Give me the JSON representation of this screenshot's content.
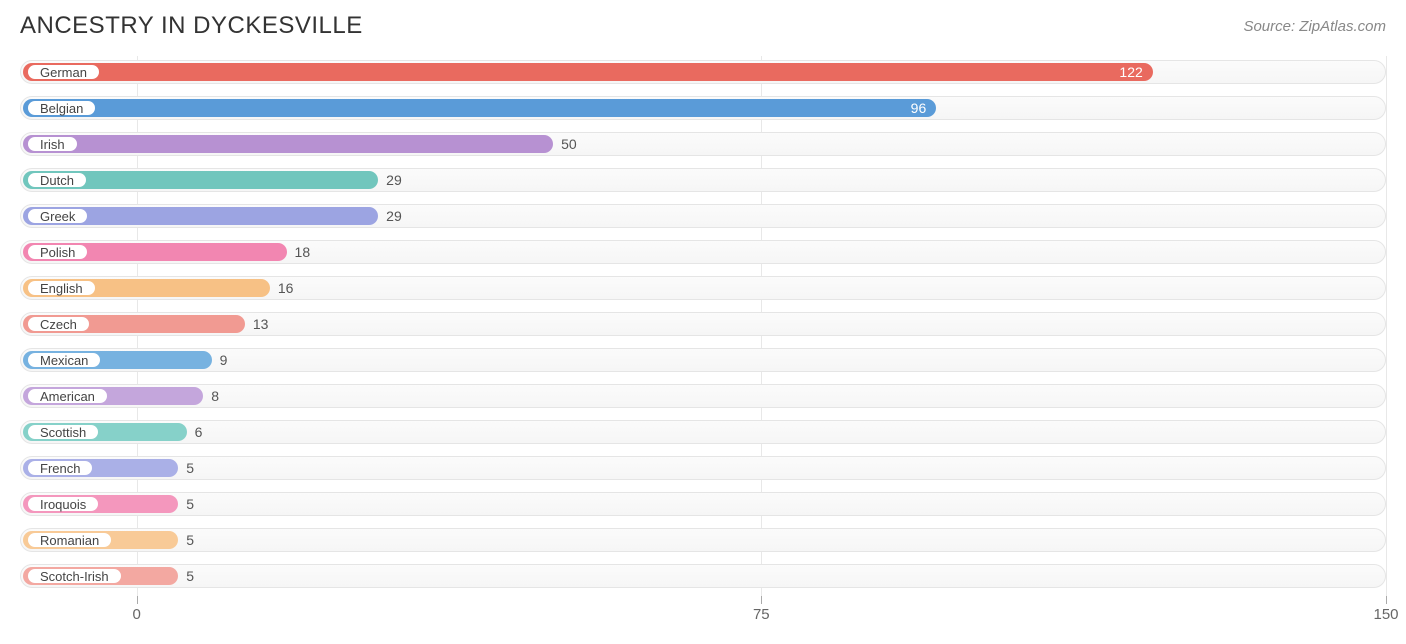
{
  "header": {
    "title": "ANCESTRY IN DYCKESVILLE",
    "source": "Source: ZipAtlas.com"
  },
  "chart": {
    "type": "bar-horizontal",
    "xlim": [
      0,
      150
    ],
    "ticks": [
      0,
      75,
      150
    ],
    "track_border_color": "#e5e5e5",
    "track_bg_top": "#fbfbfb",
    "track_bg_bottom": "#f6f6f6",
    "grid_color": "#e8e8e8",
    "tick_color": "#aaaaaa",
    "tick_label_color": "#666666",
    "title_color": "#333333",
    "title_fontsize": 24,
    "source_color": "#888888",
    "label_fontsize": 13,
    "value_fontsize": 14,
    "bar_origin_value": -14,
    "data": [
      {
        "label": "German",
        "value": 122,
        "color": "#e96a5f",
        "value_inside": true
      },
      {
        "label": "Belgian",
        "value": 96,
        "color": "#5a9bd8",
        "value_inside": true
      },
      {
        "label": "Irish",
        "value": 50,
        "color": "#b791d2",
        "value_inside": false
      },
      {
        "label": "Dutch",
        "value": 29,
        "color": "#71c6bd",
        "value_inside": false
      },
      {
        "label": "Greek",
        "value": 29,
        "color": "#9ca4e2",
        "value_inside": false
      },
      {
        "label": "Polish",
        "value": 18,
        "color": "#f286b1",
        "value_inside": false
      },
      {
        "label": "English",
        "value": 16,
        "color": "#f7c185",
        "value_inside": false
      },
      {
        "label": "Czech",
        "value": 13,
        "color": "#f19a92",
        "value_inside": false
      },
      {
        "label": "Mexican",
        "value": 9,
        "color": "#77b2e0",
        "value_inside": false
      },
      {
        "label": "American",
        "value": 8,
        "color": "#c4a6dc",
        "value_inside": false
      },
      {
        "label": "Scottish",
        "value": 6,
        "color": "#86d1c9",
        "value_inside": false
      },
      {
        "label": "French",
        "value": 5,
        "color": "#aab0e7",
        "value_inside": false
      },
      {
        "label": "Iroquois",
        "value": 5,
        "color": "#f497bd",
        "value_inside": false
      },
      {
        "label": "Romanian",
        "value": 5,
        "color": "#f8ca97",
        "value_inside": false
      },
      {
        "label": "Scotch-Irish",
        "value": 5,
        "color": "#f3a8a1",
        "value_inside": false
      }
    ]
  }
}
